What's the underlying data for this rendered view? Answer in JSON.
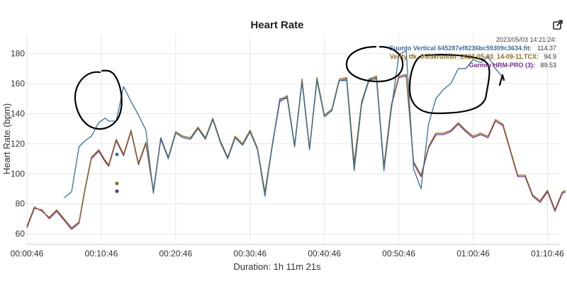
{
  "toolbar": {
    "export_icon": "external-link-icon"
  },
  "chart_data": {
    "type": "line",
    "title": "Heart Rate",
    "ylabel": "Heart Rate (bpm)",
    "xlabel": "Duration: 1h 11m 21s",
    "ylim": [
      53,
      193
    ],
    "yticks": [
      "60",
      "80",
      "100",
      "120",
      "140",
      "160",
      "180"
    ],
    "xlim": [
      46,
      4346
    ],
    "xtick_labels": [
      "00:00:46",
      "00:10:46",
      "00:20:46",
      "00:30:46",
      "00:40:46",
      "00:50:46",
      "01:00:46",
      "01:10:46"
    ],
    "grid": true,
    "legend_position": "top-right",
    "hover": {
      "time": "2023/05/03 14:21:24:",
      "entries": [
        {
          "series": "suunto",
          "label": "Suunto Vertical 645287ef8236bc59309c3634.fit:",
          "value": "114.37"
        },
        {
          "series": "verity",
          "label": "Verity tfk_the5krunner_2023-05-03_14-09-11.TCX:",
          "value": "94.9"
        },
        {
          "series": "garmin",
          "label": "Garmin HRM-PRO (3):",
          "value": "89.53"
        }
      ]
    },
    "series": [
      {
        "key": "garmin",
        "name": "Garmin HRM-PRO (3)",
        "color": "#7a2a8a",
        "x": [
          0,
          60,
          120,
          180,
          240,
          300,
          360,
          420,
          470,
          520,
          580,
          630,
          660,
          720,
          780,
          840,
          900,
          960,
          1020,
          1080,
          1140,
          1200,
          1260,
          1320,
          1380,
          1440,
          1500,
          1560,
          1620,
          1680,
          1740,
          1800,
          1860,
          1920,
          1980,
          2040,
          2100,
          2160,
          2220,
          2280,
          2340,
          2400,
          2460,
          2520,
          2580,
          2640,
          2700,
          2760,
          2820,
          2880,
          2940,
          3000,
          3060,
          3120,
          3180,
          3240,
          3300,
          3360,
          3420,
          3480,
          3540,
          3600,
          3660,
          3720,
          3780,
          3840,
          3900,
          3960,
          4020,
          4080,
          4140,
          4200,
          4260,
          4320,
          4346
        ],
        "y": [
          64,
          77,
          76,
          70,
          75,
          69,
          63,
          67,
          90,
          110,
          115,
          108,
          105,
          122,
          112,
          128,
          106,
          120,
          88,
          123,
          110,
          127,
          124,
          123,
          130,
          123,
          136,
          121,
          110,
          124,
          119,
          128,
          116,
          87,
          119,
          148,
          151,
          118,
          162,
          116,
          163,
          138,
          142,
          162,
          163,
          106,
          147,
          162,
          164,
          104,
          145,
          164,
          165,
          107,
          98,
          117,
          126,
          126,
          128,
          133,
          128,
          124,
          126,
          124,
          135,
          132,
          115,
          98,
          98,
          85,
          81,
          88,
          75,
          87,
          88
        ]
      },
      {
        "key": "verity",
        "name": "Verity tfk_the5krunner_2023-05-03_14-09-11.TCX",
        "color": "#8a6a1a",
        "x": [
          0,
          60,
          120,
          180,
          240,
          300,
          360,
          420,
          470,
          520,
          580,
          630,
          660,
          720,
          780,
          840,
          900,
          960,
          1020,
          1080,
          1140,
          1200,
          1260,
          1320,
          1380,
          1440,
          1500,
          1560,
          1620,
          1680,
          1740,
          1800,
          1860,
          1920,
          1980,
          2040,
          2100,
          2160,
          2220,
          2280,
          2340,
          2400,
          2460,
          2520,
          2580,
          2640,
          2700,
          2760,
          2820,
          2880,
          2940,
          3000,
          3060,
          3120,
          3180,
          3240,
          3300,
          3360,
          3420,
          3480,
          3540,
          3600,
          3660,
          3720,
          3780,
          3840,
          3900,
          3960,
          4020,
          4080,
          4140,
          4200,
          4260,
          4320,
          4346
        ],
        "y": [
          65,
          78,
          75,
          71,
          76,
          70,
          64,
          68,
          91,
          111,
          116,
          109,
          106,
          123,
          113,
          129,
          107,
          121,
          89,
          124,
          111,
          128,
          125,
          124,
          131,
          124,
          137,
          122,
          111,
          125,
          120,
          129,
          117,
          88,
          120,
          149,
          152,
          119,
          163,
          117,
          164,
          139,
          143,
          163,
          164,
          107,
          148,
          163,
          165,
          105,
          146,
          165,
          166,
          108,
          99,
          118,
          127,
          127,
          129,
          134,
          129,
          125,
          127,
          125,
          136,
          133,
          116,
          99,
          99,
          86,
          82,
          89,
          76,
          88,
          89
        ]
      },
      {
        "key": "suunto",
        "name": "Suunto Vertical 645287ef8236bc59309c3634.fit",
        "color": "#3a6e9a",
        "x": [
          300,
          360,
          420,
          470,
          520,
          580,
          630,
          660,
          720,
          780,
          840,
          900,
          960,
          1020,
          1080,
          1140,
          1200,
          1260,
          1320,
          1380,
          1440,
          1500,
          1560,
          1620,
          1680,
          1740,
          1800,
          1860,
          1920,
          1980,
          2040,
          2100,
          2160,
          2220,
          2280,
          2340,
          2400,
          2460,
          2520,
          2580,
          2640,
          2700,
          2760,
          2820,
          2880,
          2940,
          3000,
          3060,
          3120,
          3180,
          3240,
          3300,
          3360,
          3420,
          3480,
          3540,
          3600,
          3660,
          3720,
          3780,
          3840
        ],
        "y": [
          84,
          88,
          118,
          122,
          125,
          134,
          137,
          135,
          135,
          158,
          148,
          139,
          129,
          87,
          124,
          110,
          127,
          124,
          123,
          130,
          123,
          136,
          121,
          110,
          124,
          119,
          128,
          116,
          85,
          119,
          150,
          150,
          118,
          161,
          116,
          162,
          138,
          142,
          162,
          162,
          102,
          146,
          163,
          163,
          102,
          143,
          179,
          182,
          103,
          90,
          133,
          150,
          156,
          160,
          170,
          170,
          176,
          174,
          178,
          170,
          164
        ]
      }
    ]
  }
}
